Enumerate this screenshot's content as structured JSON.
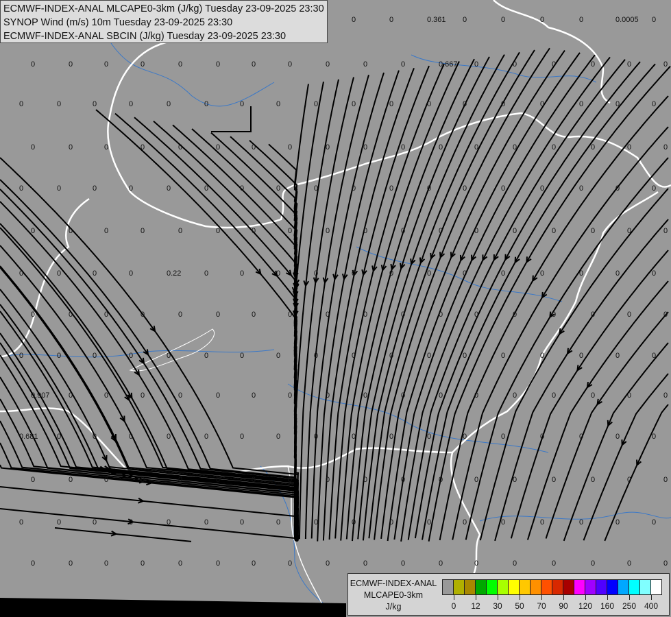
{
  "titles": [
    "ECMWF-INDEX-ANAL MLCAPE0-3km (J/kg) Tuesday 23-09-2025 23:30",
    "SYNOP Wind (m/s) 10m Tuesday 23-09-2025 23:30",
    "ECMWF-INDEX-ANAL SBCIN (J/kg) Tuesday 23-09-2025 23:30"
  ],
  "legend": {
    "line1": "ECMWF-INDEX-ANAL",
    "line2": "MLCAPE0-3km",
    "unit": "J/kg",
    "colors": [
      "#999999",
      "#b0b000",
      "#a88800",
      "#00a800",
      "#00ff00",
      "#a8ff00",
      "#ffff00",
      "#ffc800",
      "#ff9000",
      "#ff5000",
      "#d82800",
      "#a80000",
      "#ff00ff",
      "#a000ff",
      "#5000ff",
      "#0000ff",
      "#00a8ff",
      "#00ffff",
      "#80ffff",
      "#ffffff"
    ],
    "ticks": [
      "0",
      "12",
      "30",
      "50",
      "70",
      "90",
      "120",
      "160",
      "250",
      "400"
    ]
  },
  "sbcin_default": "0",
  "sbcin_special": [
    {
      "row": 0,
      "col": 11,
      "value": "0.361"
    },
    {
      "row": 1,
      "col": 11,
      "value": "0.667"
    },
    {
      "row": 0,
      "col": 16,
      "value": "0.0005"
    },
    {
      "row": 6,
      "col": 4,
      "value": "0.22"
    },
    {
      "row": 9,
      "col": 0,
      "value": "0.907"
    },
    {
      "row": 10,
      "col": 0,
      "value": "0.681"
    }
  ],
  "colors": {
    "background": "#999999",
    "borders": "#ffffff",
    "rivers": "#3a78c8",
    "streamlines": "#000000"
  }
}
